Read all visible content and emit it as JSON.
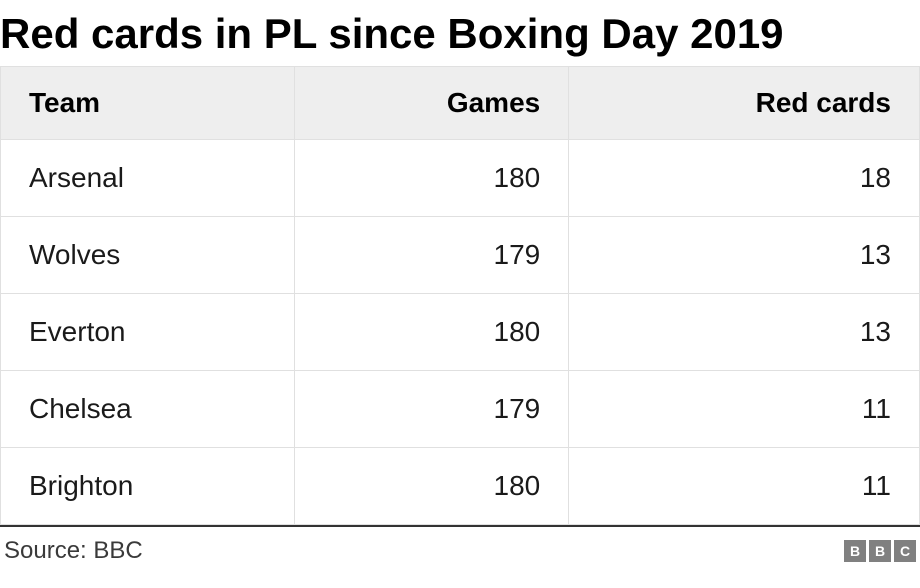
{
  "title": "Red cards in PL since Boxing Day 2019",
  "table": {
    "columns": [
      "Team",
      "Games",
      "Red cards"
    ],
    "rows": [
      {
        "team": "Arsenal",
        "games": 180,
        "redcards": 18
      },
      {
        "team": "Wolves",
        "games": 179,
        "redcards": 13
      },
      {
        "team": "Everton",
        "games": 180,
        "redcards": 13
      },
      {
        "team": "Chelsea",
        "games": 179,
        "redcards": 11
      },
      {
        "team": "Brighton",
        "games": 180,
        "redcards": 11
      }
    ],
    "header_bg": "#eeeeee",
    "border_color": "#e0e0e0",
    "header_fontsize": 28,
    "cell_fontsize": 28,
    "title_fontsize": 42,
    "column_align": [
      "left",
      "right",
      "right"
    ]
  },
  "footer": {
    "source_label": "Source: BBC",
    "logo_letters": [
      "B",
      "B",
      "C"
    ],
    "logo_bg": "#808080",
    "logo_fg": "#ffffff"
  },
  "colors": {
    "background": "#ffffff",
    "text": "#1a1a1a",
    "title": "#000000",
    "footer_text": "#3a3a3a",
    "bottom_rule": "#333333"
  }
}
